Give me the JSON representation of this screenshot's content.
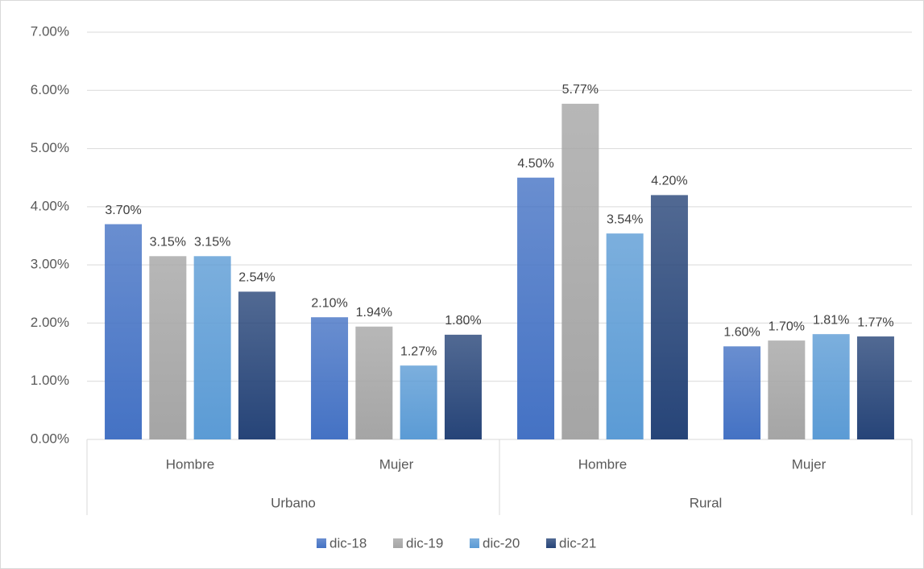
{
  "chart_data": {
    "type": "bar",
    "groups": [
      "Urbano",
      "Rural"
    ],
    "categories": [
      "Hombre",
      "Mujer",
      "Hombre",
      "Mujer"
    ],
    "series": [
      {
        "name": "dic-18",
        "color": "#4472c4",
        "values": [
          3.7,
          2.1,
          4.5,
          1.6
        ],
        "value_labels": [
          "3.70%",
          "2.10%",
          "4.50%",
          "1.60%"
        ]
      },
      {
        "name": "dic-19",
        "color": "#a5a5a5",
        "values": [
          3.15,
          1.94,
          5.77,
          1.7
        ],
        "value_labels": [
          "3.15%",
          "1.94%",
          "5.77%",
          "1.70%"
        ]
      },
      {
        "name": "dic-20",
        "color": "#5b9bd5",
        "values": [
          3.15,
          1.27,
          3.54,
          1.81
        ],
        "value_labels": [
          "3.15%",
          "1.27%",
          "3.54%",
          "1.81%"
        ]
      },
      {
        "name": "dic-21",
        "color": "#264478",
        "values": [
          2.54,
          1.8,
          4.2,
          1.77
        ],
        "value_labels": [
          "2.54%",
          "1.80%",
          "4.20%",
          "1.77%"
        ]
      }
    ],
    "ylim": [
      0,
      7
    ],
    "yticks": [
      {
        "value": 0,
        "label": "0.00%"
      },
      {
        "value": 1,
        "label": "1.00%"
      },
      {
        "value": 2,
        "label": "2.00%"
      },
      {
        "value": 3,
        "label": "3.00%"
      },
      {
        "value": 4,
        "label": "4.00%"
      },
      {
        "value": 5,
        "label": "5.00%"
      },
      {
        "value": 6,
        "label": "6.00%"
      },
      {
        "value": 7,
        "label": "7.00%"
      }
    ],
    "grid": true,
    "legend": "bottom"
  }
}
